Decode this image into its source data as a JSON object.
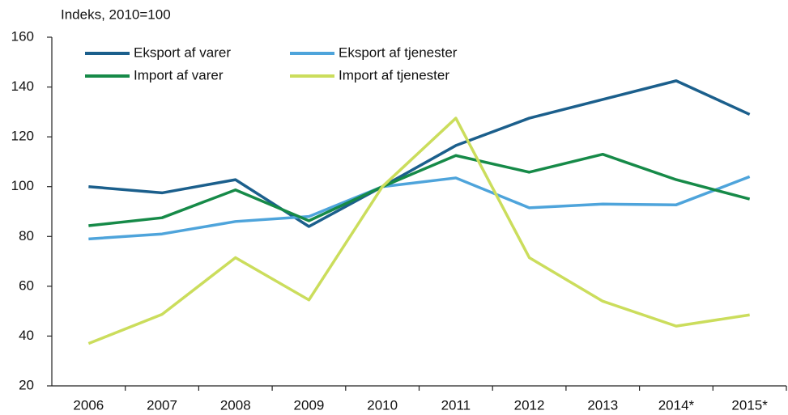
{
  "chart_data": {
    "type": "line",
    "y_label": "Indeks, 2010=100",
    "categories": [
      "2006",
      "2007",
      "2008",
      "2009",
      "2010",
      "2011",
      "2012",
      "2013",
      "2014*",
      "2015*"
    ],
    "series": [
      {
        "name": "Eksport af varer",
        "color": "#1b5f8c",
        "values": [
          100,
          97.5,
          102.8,
          84,
          100,
          116.5,
          127.5,
          135,
          142.5,
          129
        ]
      },
      {
        "name": "Eksport af tjenester",
        "color": "#4ea4db",
        "values": [
          79,
          81,
          86,
          88,
          100,
          103.5,
          91.5,
          93,
          92.7,
          104
        ]
      },
      {
        "name": "Import af varer",
        "color": "#168a48",
        "values": [
          84.3,
          87.5,
          98.7,
          86.3,
          100,
          112.5,
          105.8,
          113,
          102.8,
          95
        ]
      },
      {
        "name": "Import af tjenester",
        "color": "#cbdd5c",
        "values": [
          37,
          48.7,
          71.5,
          54.5,
          100,
          127.5,
          71.5,
          54,
          44,
          48.5
        ]
      }
    ],
    "ylim": [
      20,
      160
    ],
    "yticks": [
      20,
      40,
      60,
      80,
      100,
      120,
      140,
      160
    ],
    "grid": false,
    "legend": "top-left"
  }
}
